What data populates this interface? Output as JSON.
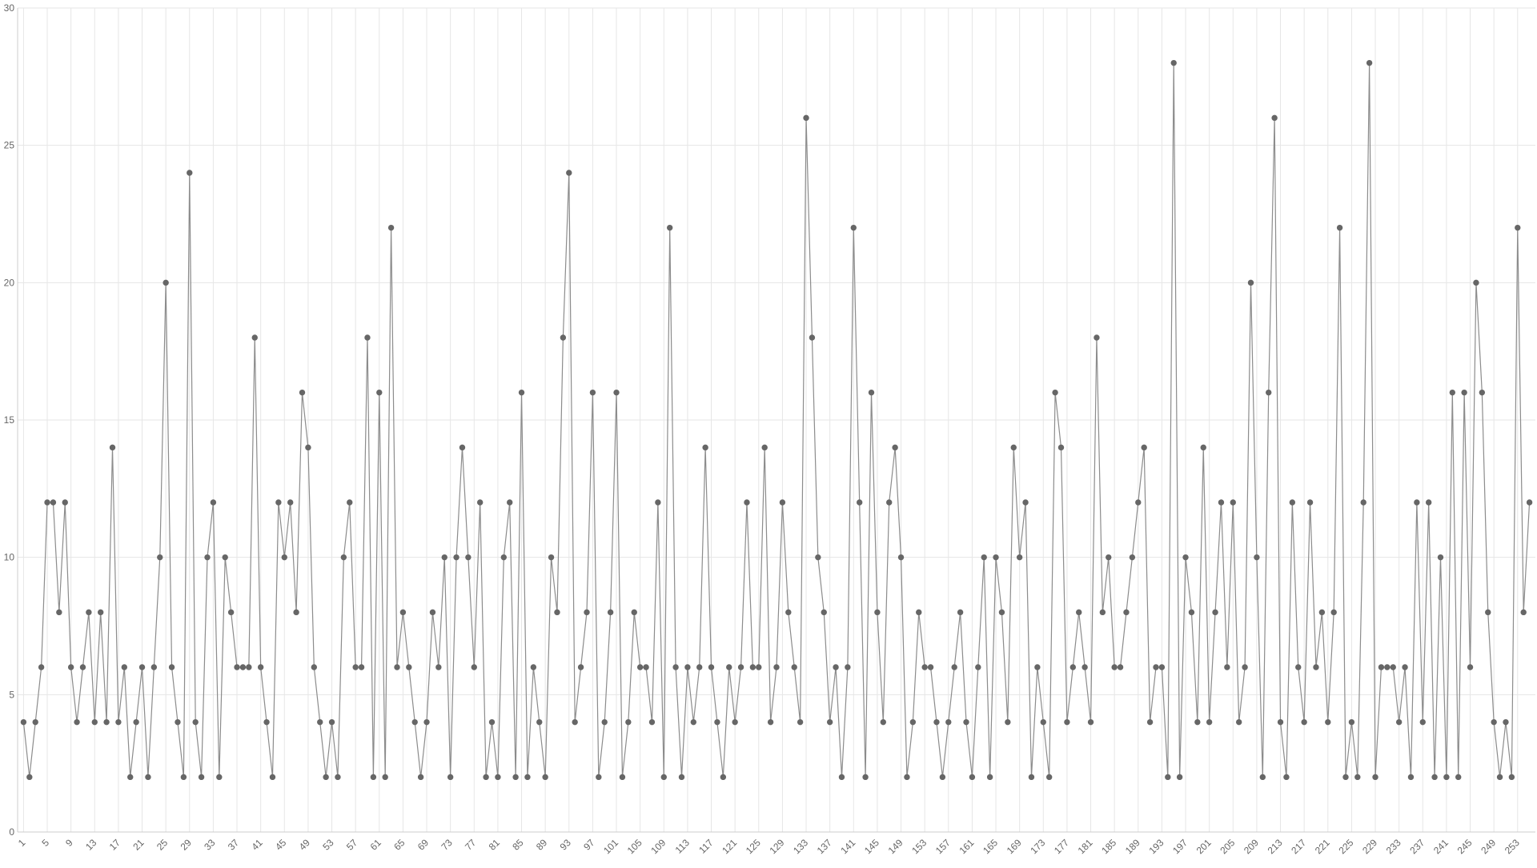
{
  "chart_data": {
    "type": "line",
    "x": [
      1,
      2,
      3,
      4,
      5,
      6,
      7,
      8,
      9,
      10,
      11,
      12,
      13,
      14,
      15,
      16,
      17,
      18,
      19,
      20,
      21,
      22,
      23,
      24,
      25,
      26,
      27,
      28,
      29,
      30,
      31,
      32,
      33,
      34,
      35,
      36,
      37,
      38,
      39,
      40,
      41,
      42,
      43,
      44,
      45,
      46,
      47,
      48,
      49,
      50,
      51,
      52,
      53,
      54,
      55,
      56,
      57,
      58,
      59,
      60,
      61,
      62,
      63,
      64,
      65,
      66,
      67,
      68,
      69,
      70,
      71,
      72,
      73,
      74,
      75,
      76,
      77,
      78,
      79,
      80,
      81,
      82,
      83,
      84,
      85,
      86,
      87,
      88,
      89,
      90,
      91,
      92,
      93,
      94,
      95,
      96,
      97,
      98,
      99,
      100,
      101,
      102,
      103,
      104,
      105,
      106,
      107,
      108,
      109,
      110,
      111,
      112,
      113,
      114,
      115,
      116,
      117,
      118,
      119,
      120,
      121,
      122,
      123,
      124,
      125,
      126,
      127,
      128,
      129,
      130,
      131,
      132,
      133,
      134,
      135,
      136,
      137,
      138,
      139,
      140,
      141,
      142,
      143,
      144,
      145,
      146,
      147,
      148,
      149,
      150,
      151,
      152,
      153,
      154,
      155,
      156,
      157,
      158,
      159,
      160,
      161,
      162,
      163,
      164,
      165,
      166,
      167,
      168,
      169,
      170,
      171,
      172,
      173,
      174,
      175,
      176,
      177,
      178,
      179,
      180,
      181,
      182,
      183,
      184,
      185,
      186,
      187,
      188,
      189,
      190,
      191,
      192,
      193,
      194,
      195,
      196,
      197,
      198,
      199,
      200,
      201,
      202,
      203,
      204,
      205,
      206,
      207,
      208,
      209,
      210,
      211,
      212,
      213,
      214,
      215,
      216,
      217,
      218,
      219,
      220,
      221,
      222,
      223,
      224,
      225,
      226,
      227,
      228,
      229,
      230,
      231,
      232,
      233,
      234,
      235,
      236,
      237,
      238,
      239,
      240,
      241,
      242,
      243,
      244,
      245,
      246,
      247,
      248,
      249,
      250,
      251,
      252,
      253,
      254,
      255
    ],
    "values": [
      4,
      2,
      4,
      6,
      12,
      12,
      8,
      12,
      6,
      4,
      6,
      8,
      4,
      8,
      4,
      14,
      4,
      6,
      2,
      4,
      6,
      2,
      6,
      10,
      20,
      6,
      4,
      2,
      24,
      4,
      2,
      10,
      12,
      2,
      10,
      8,
      6,
      6,
      6,
      18,
      6,
      4,
      2,
      12,
      10,
      12,
      8,
      16,
      14,
      6,
      4,
      2,
      4,
      2,
      10,
      12,
      6,
      6,
      18,
      2,
      16,
      2,
      22,
      6,
      8,
      6,
      4,
      2,
      4,
      8,
      6,
      10,
      2,
      10,
      14,
      10,
      6,
      12,
      2,
      4,
      2,
      10,
      12,
      2,
      16,
      2,
      6,
      4,
      2,
      10,
      8,
      18,
      24,
      4,
      6,
      8,
      16,
      2,
      4,
      8,
      16,
      2,
      4,
      8,
      6,
      6,
      4,
      12,
      2,
      22,
      6,
      2,
      6,
      4,
      6,
      14,
      6,
      4,
      2,
      6,
      4,
      6,
      12,
      6,
      6,
      14,
      4,
      6,
      12,
      8,
      6,
      4,
      26,
      18,
      10,
      8,
      4,
      6,
      2,
      6,
      22,
      12,
      2,
      16,
      8,
      4,
      12,
      14,
      10,
      2,
      4,
      8,
      6,
      6,
      4,
      2,
      4,
      6,
      8,
      4,
      2,
      6,
      10,
      2,
      10,
      8,
      4,
      14,
      10,
      12,
      2,
      6,
      4,
      2,
      16,
      14,
      4,
      6,
      8,
      6,
      4,
      18,
      8,
      10,
      6,
      6,
      8,
      10,
      12,
      14,
      4,
      6,
      6,
      2,
      28,
      2,
      10,
      8,
      4,
      14,
      4,
      8,
      12,
      6,
      12,
      4,
      6,
      20,
      10,
      2,
      16,
      26,
      4,
      2,
      12,
      6,
      4,
      12,
      6,
      8,
      4,
      8,
      22,
      2,
      4,
      2,
      12,
      28,
      2,
      6,
      6,
      6,
      4,
      6,
      2,
      12,
      4,
      12,
      2,
      10,
      2,
      16,
      2,
      16,
      6,
      20,
      16,
      8,
      4,
      2,
      4,
      2,
      22,
      8,
      12
    ],
    "line_color": "#8c8c8c",
    "point_color": "#666666",
    "xlim": [
      0,
      256
    ],
    "xticks": [
      1,
      5,
      9,
      13,
      17,
      21,
      25,
      29,
      33,
      37,
      41,
      45,
      49,
      53,
      57,
      61,
      65,
      69,
      73,
      77,
      81,
      85,
      89,
      93,
      97,
      101,
      105,
      109,
      113,
      117,
      121,
      125,
      129,
      133,
      137,
      141,
      145,
      149,
      153,
      157,
      161,
      165,
      169,
      173,
      177,
      181,
      185,
      189,
      193,
      197,
      201,
      205,
      209,
      213,
      217,
      221,
      225,
      229,
      233,
      237,
      241,
      245,
      249,
      253
    ],
    "ylim": [
      0,
      30
    ],
    "yticks": [
      0,
      5,
      10,
      15,
      20,
      25,
      30
    ],
    "grid": true
  }
}
